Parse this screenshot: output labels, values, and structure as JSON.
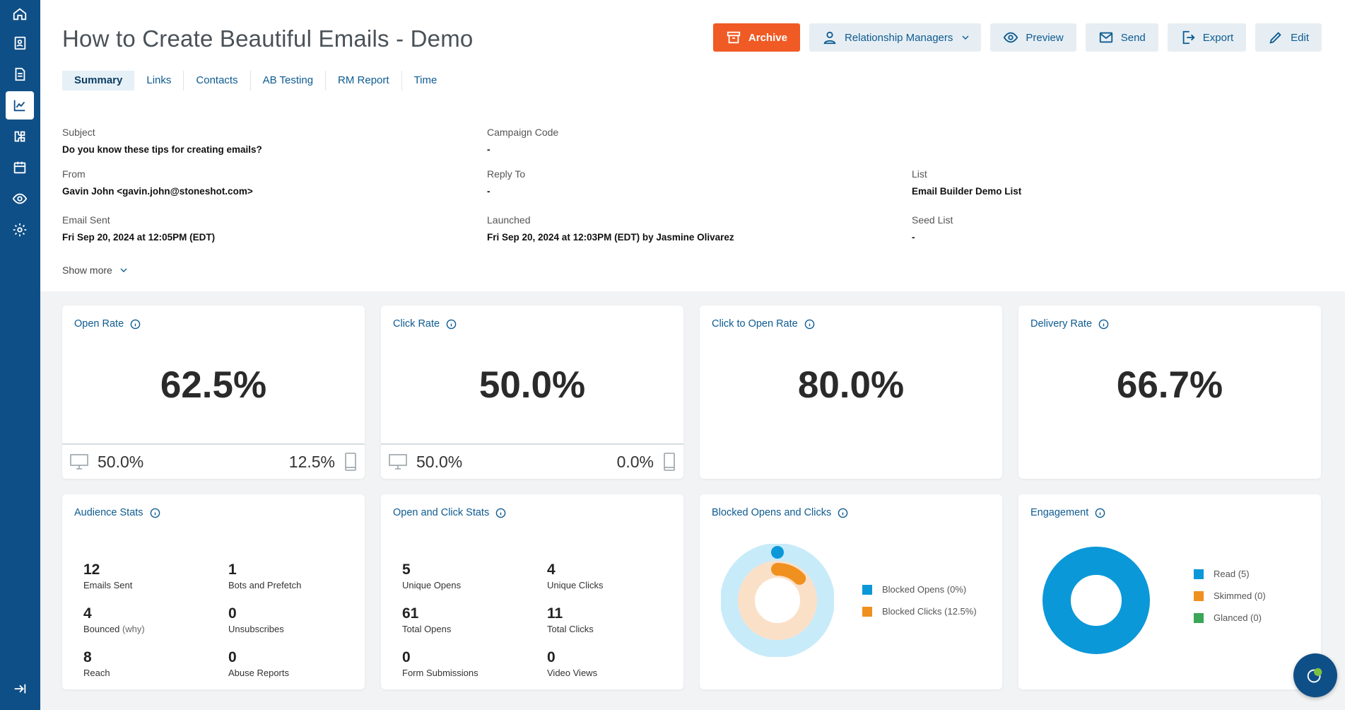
{
  "header": {
    "title": "How to Create Beautiful Emails - Demo",
    "actions": {
      "archive": "Archive",
      "relationship_managers": "Relationship Managers",
      "preview": "Preview",
      "send": "Send",
      "export": "Export",
      "edit": "Edit"
    }
  },
  "tabs": [
    {
      "label": "Summary",
      "active": true
    },
    {
      "label": "Links"
    },
    {
      "label": "Contacts"
    },
    {
      "label": "AB Testing"
    },
    {
      "label": "RM Report"
    },
    {
      "label": "Time"
    }
  ],
  "details": {
    "subject": {
      "label": "Subject",
      "value": "Do you know these tips for creating emails?"
    },
    "campaign_code": {
      "label": "Campaign Code",
      "value": "-"
    },
    "from": {
      "label": "From",
      "value": "Gavin John <gavin.john@stoneshot.com>"
    },
    "reply_to": {
      "label": "Reply To",
      "value": "-"
    },
    "list": {
      "label": "List",
      "value": "Email Builder Demo List"
    },
    "email_sent": {
      "label": "Email Sent",
      "value": "Fri Sep 20, 2024 at 12:05PM (EDT)"
    },
    "launched": {
      "label": "Launched",
      "value": "Fri Sep 20, 2024 at 12:03PM (EDT) by Jasmine Olivarez"
    },
    "seed_list": {
      "label": "Seed List",
      "value": "-"
    },
    "show_more": "Show more"
  },
  "rates": {
    "open_rate": {
      "title": "Open Rate",
      "value": "62.5%",
      "desktop": "50.0%",
      "mobile": "12.5%"
    },
    "click_rate": {
      "title": "Click Rate",
      "value": "50.0%",
      "desktop": "50.0%",
      "mobile": "0.0%"
    },
    "click_to_open": {
      "title": "Click to Open Rate",
      "value": "80.0%"
    },
    "delivery_rate": {
      "title": "Delivery Rate",
      "value": "66.7%"
    }
  },
  "audience": {
    "title": "Audience Stats",
    "stats": [
      {
        "num": "12",
        "label": "Emails Sent"
      },
      {
        "num": "1",
        "label": "Bots and Prefetch"
      },
      {
        "num": "4",
        "label": "Bounced",
        "sub": "(why)"
      },
      {
        "num": "0",
        "label": "Unsubscribes"
      },
      {
        "num": "8",
        "label": "Reach"
      },
      {
        "num": "0",
        "label": "Abuse Reports"
      }
    ]
  },
  "open_click": {
    "title": "Open and Click Stats",
    "stats": [
      {
        "num": "5",
        "label": "Unique Opens"
      },
      {
        "num": "4",
        "label": "Unique Clicks"
      },
      {
        "num": "61",
        "label": "Total Opens"
      },
      {
        "num": "11",
        "label": "Total Clicks"
      },
      {
        "num": "0",
        "label": "Form Submissions"
      },
      {
        "num": "0",
        "label": "Video Views"
      }
    ]
  },
  "blocked": {
    "title": "Blocked Opens and Clicks",
    "legend": [
      "Blocked Opens (0%)",
      "Blocked Clicks (12.5%)"
    ],
    "values": {
      "blocked_opens_pct": 0,
      "blocked_clicks_pct": 12.5
    },
    "colors": {
      "opens": "#0b98d8",
      "opens_track": "#c8ebfa",
      "clicks": "#f0901e",
      "clicks_track": "#fbe0c8"
    }
  },
  "engagement": {
    "title": "Engagement",
    "legend": [
      "Read (5)",
      "Skimmed (0)",
      "Glanced (0)"
    ],
    "values": {
      "read": 5,
      "skimmed": 0,
      "glanced": 0
    },
    "colors": {
      "read": "#0b98d8",
      "skimmed": "#f0901e",
      "glanced": "#3aa657"
    }
  },
  "colors": {
    "sidebar": "#0f4f87",
    "accent": "#0d5b91",
    "archive": "#f05a24"
  }
}
